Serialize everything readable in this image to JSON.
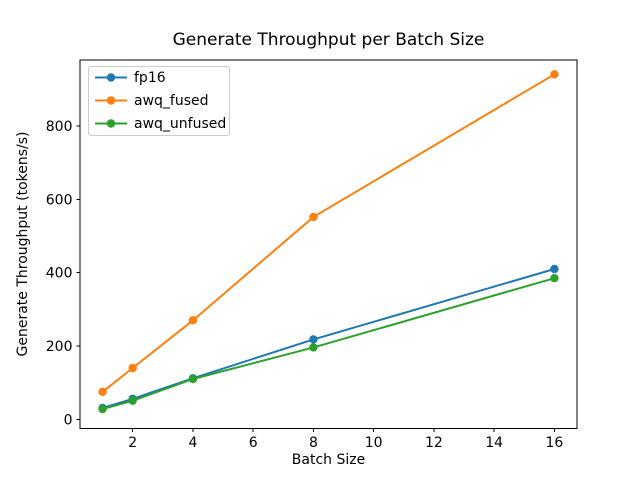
{
  "figure": {
    "background": "#ffffff",
    "axes_edge_color": "#000000",
    "legend_border_color": "#cccccc"
  },
  "chart_data": {
    "type": "line",
    "title": "Generate Throughput per Batch Size",
    "xlabel": "Batch Size",
    "ylabel": "Generate Throughput (tokens/s)",
    "x": [
      1,
      2,
      4,
      8,
      16
    ],
    "series": [
      {
        "name": "fp16",
        "color": "#1f77b4",
        "values": [
          31,
          56,
          112,
          218,
          410
        ]
      },
      {
        "name": "awq_fused",
        "color": "#ff7f0e",
        "values": [
          75,
          140,
          270,
          552,
          941
        ]
      },
      {
        "name": "awq_unfused",
        "color": "#2ca02c",
        "values": [
          28,
          51,
          110,
          196,
          385
        ]
      }
    ],
    "xticks": [
      2,
      4,
      6,
      8,
      10,
      12,
      14,
      16
    ],
    "yticks": [
      0,
      200,
      400,
      600,
      800
    ],
    "xlim": [
      0.25,
      16.75
    ],
    "ylim": [
      -25,
      980
    ],
    "grid": false,
    "legend_position": "upper left",
    "marker": "o"
  }
}
